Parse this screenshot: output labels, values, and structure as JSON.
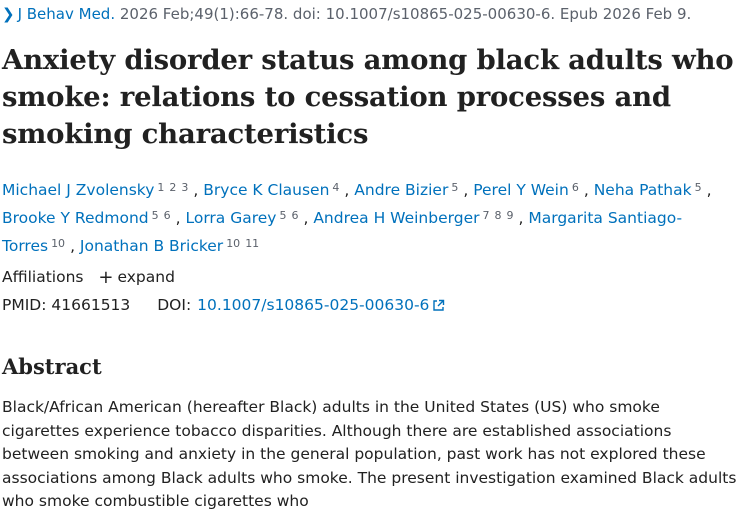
{
  "citation": {
    "journal": "J Behav Med.",
    "details": " 2026 Feb;49(1):66-78. doi: 10.1007/s10865-025-00630-6. Epub 2026 Feb 9."
  },
  "title": "Anxiety disorder status among black adults who smoke: relations to cessation processes and smoking characteristics",
  "authors": [
    {
      "name": "Michael J Zvolensky",
      "affiliations": [
        "1",
        "2",
        "3"
      ]
    },
    {
      "name": "Bryce K Clausen",
      "affiliations": [
        "4"
      ]
    },
    {
      "name": "Andre Bizier",
      "affiliations": [
        "5"
      ]
    },
    {
      "name": "Perel Y Wein",
      "affiliations": [
        "6"
      ]
    },
    {
      "name": "Neha Pathak",
      "affiliations": [
        "5"
      ]
    },
    {
      "name": "Brooke Y Redmond",
      "affiliations": [
        "5",
        "6"
      ]
    },
    {
      "name": "Lorra Garey",
      "affiliations": [
        "5",
        "6"
      ]
    },
    {
      "name": "Andrea H Weinberger",
      "affiliations": [
        "7",
        "8",
        "9"
      ]
    },
    {
      "name": "Margarita Santiago-Torres",
      "affiliations": [
        "10"
      ]
    },
    {
      "name": "Jonathan B Bricker",
      "affiliations": [
        "10",
        "11"
      ]
    }
  ],
  "affiliations": {
    "label": "Affiliations",
    "expand_icon": "+",
    "expand_label": "expand"
  },
  "ids": {
    "pmid_label": "PMID:",
    "pmid": "41661513",
    "doi_label": "DOI:",
    "doi": "10.1007/s10865-025-00630-6"
  },
  "abstract": {
    "heading": "Abstract",
    "text": "Black/African American (hereafter Black) adults in the United States (US) who smoke cigarettes experience tobacco disparities. Although there are established associations between smoking and anxiety in the general population, past work has not explored these associations among Black adults who smoke. The present investigation examined Black adults who smoke combustible cigarettes who"
  },
  "colors": {
    "link": "#0071bc",
    "text": "#212121",
    "muted": "#5b616b"
  },
  "icons": {
    "chevron": "chevron-right-icon",
    "external": "external-link-icon",
    "plus": "plus-icon"
  }
}
